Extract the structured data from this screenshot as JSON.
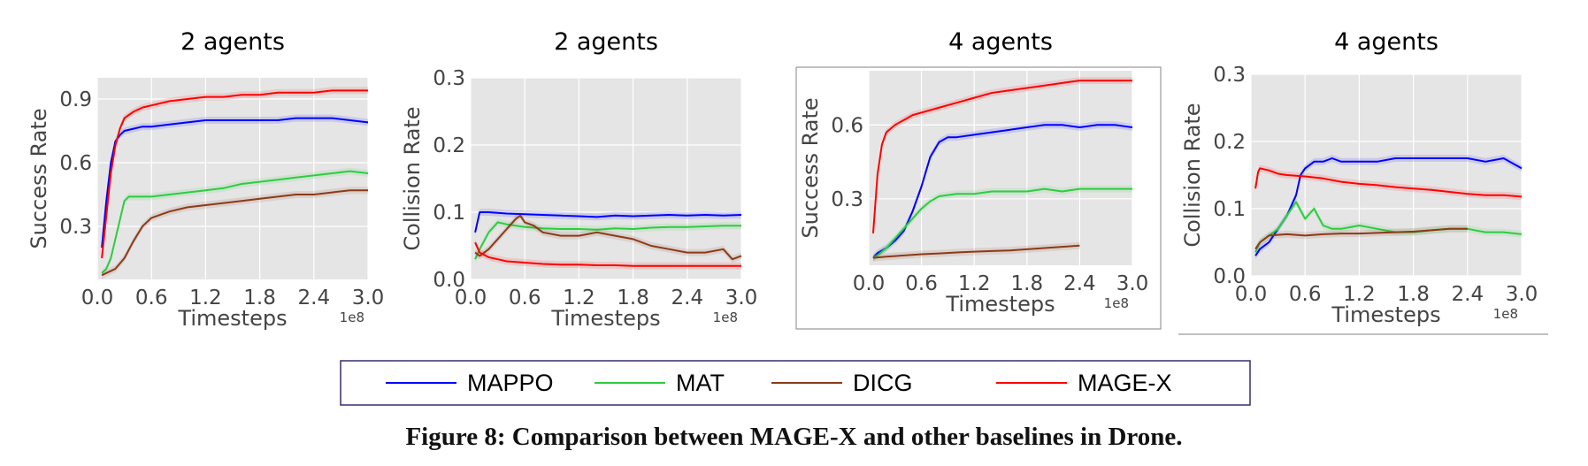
{
  "caption": "Figure 8: Comparison between MAGE-X and other baselines in Drone.",
  "legend": {
    "entries": [
      {
        "label": "MAPPO",
        "color": "#0000ff"
      },
      {
        "label": "MAT",
        "color": "#2ecc40"
      },
      {
        "label": "DICG",
        "color": "#8b3a1a"
      },
      {
        "label": "MAGE-X",
        "color": "#ff0000"
      }
    ]
  },
  "chart_data": [
    {
      "type": "line",
      "title": "2 agents",
      "xlabel": "Timesteps",
      "ylabel": "Success Rate",
      "x_multiplier": "1e8",
      "xlim": [
        0,
        3.0
      ],
      "ylim": [
        0.05,
        1.0
      ],
      "xticks": [
        "0.0",
        "0.6",
        "1.2",
        "1.8",
        "2.4",
        "3.0"
      ],
      "yticks": [
        {
          "v": 0.3,
          "label": "0.3"
        },
        {
          "v": 0.6,
          "label": "0.6"
        },
        {
          "v": 0.9,
          "label": "0.9"
        }
      ],
      "grid": true,
      "series": [
        {
          "name": "MAPPO",
          "color": "#0000ff",
          "x": [
            0.05,
            0.1,
            0.15,
            0.2,
            0.25,
            0.3,
            0.4,
            0.5,
            0.6,
            0.8,
            1.0,
            1.2,
            1.4,
            1.6,
            1.8,
            2.0,
            2.2,
            2.4,
            2.6,
            2.8,
            3.0
          ],
          "y": [
            0.2,
            0.42,
            0.6,
            0.7,
            0.73,
            0.75,
            0.76,
            0.77,
            0.77,
            0.78,
            0.79,
            0.8,
            0.8,
            0.8,
            0.8,
            0.8,
            0.81,
            0.81,
            0.81,
            0.8,
            0.79
          ]
        },
        {
          "name": "MAT",
          "color": "#2ecc40",
          "x": [
            0.05,
            0.1,
            0.15,
            0.2,
            0.25,
            0.3,
            0.35,
            0.4,
            0.6,
            0.8,
            1.0,
            1.2,
            1.4,
            1.6,
            1.8,
            2.0,
            2.2,
            2.4,
            2.6,
            2.8,
            3.0
          ],
          "y": [
            0.08,
            0.1,
            0.15,
            0.24,
            0.33,
            0.42,
            0.44,
            0.44,
            0.44,
            0.45,
            0.46,
            0.47,
            0.48,
            0.5,
            0.51,
            0.52,
            0.53,
            0.54,
            0.55,
            0.56,
            0.55
          ]
        },
        {
          "name": "DICG",
          "color": "#8b3a1a",
          "x": [
            0.05,
            0.1,
            0.2,
            0.3,
            0.4,
            0.5,
            0.6,
            0.8,
            1.0,
            1.2,
            1.4,
            1.6,
            1.8,
            2.0,
            2.2,
            2.4,
            2.6,
            2.8,
            3.0
          ],
          "y": [
            0.07,
            0.08,
            0.1,
            0.15,
            0.23,
            0.3,
            0.34,
            0.37,
            0.39,
            0.4,
            0.41,
            0.42,
            0.43,
            0.44,
            0.45,
            0.45,
            0.46,
            0.47,
            0.47
          ]
        },
        {
          "name": "MAGE-X",
          "color": "#ff0000",
          "x": [
            0.05,
            0.1,
            0.15,
            0.2,
            0.25,
            0.3,
            0.4,
            0.5,
            0.6,
            0.8,
            1.0,
            1.2,
            1.4,
            1.6,
            1.8,
            2.0,
            2.2,
            2.4,
            2.6,
            2.8,
            3.0
          ],
          "y": [
            0.15,
            0.35,
            0.55,
            0.68,
            0.76,
            0.81,
            0.84,
            0.86,
            0.87,
            0.89,
            0.9,
            0.91,
            0.91,
            0.92,
            0.92,
            0.93,
            0.93,
            0.93,
            0.94,
            0.94,
            0.94
          ]
        }
      ]
    },
    {
      "type": "line",
      "title": "2 agents",
      "xlabel": "Timesteps",
      "ylabel": "Collision Rate",
      "x_multiplier": "1e8",
      "xlim": [
        0,
        3.0
      ],
      "ylim": [
        0.0,
        0.3
      ],
      "xticks": [
        "0.0",
        "0.6",
        "1.2",
        "1.8",
        "2.4",
        "3.0"
      ],
      "yticks": [
        {
          "v": 0.0,
          "label": "0.0"
        },
        {
          "v": 0.1,
          "label": "0.1"
        },
        {
          "v": 0.2,
          "label": "0.2"
        },
        {
          "v": 0.3,
          "label": "0.3"
        }
      ],
      "grid": true,
      "series": [
        {
          "name": "MAPPO",
          "color": "#0000ff",
          "x": [
            0.05,
            0.1,
            0.2,
            0.4,
            0.6,
            0.8,
            1.0,
            1.2,
            1.4,
            1.6,
            1.8,
            2.0,
            2.2,
            2.4,
            2.6,
            2.8,
            3.0
          ],
          "y": [
            0.07,
            0.1,
            0.1,
            0.098,
            0.097,
            0.096,
            0.095,
            0.094,
            0.093,
            0.095,
            0.094,
            0.095,
            0.096,
            0.095,
            0.096,
            0.095,
            0.096
          ]
        },
        {
          "name": "MAT",
          "color": "#2ecc40",
          "x": [
            0.05,
            0.1,
            0.2,
            0.3,
            0.4,
            0.6,
            0.8,
            1.0,
            1.2,
            1.4,
            1.6,
            1.8,
            2.0,
            2.2,
            2.4,
            2.6,
            2.8,
            3.0
          ],
          "y": [
            0.03,
            0.045,
            0.07,
            0.085,
            0.082,
            0.078,
            0.076,
            0.075,
            0.075,
            0.074,
            0.076,
            0.075,
            0.077,
            0.078,
            0.078,
            0.079,
            0.08,
            0.08
          ]
        },
        {
          "name": "DICG",
          "color": "#8b3a1a",
          "x": [
            0.05,
            0.1,
            0.2,
            0.3,
            0.4,
            0.5,
            0.55,
            0.6,
            0.7,
            0.8,
            1.0,
            1.2,
            1.4,
            1.6,
            1.8,
            2.0,
            2.2,
            2.4,
            2.6,
            2.8,
            2.9,
            3.0
          ],
          "y": [
            0.04,
            0.035,
            0.045,
            0.06,
            0.075,
            0.09,
            0.095,
            0.085,
            0.08,
            0.07,
            0.065,
            0.065,
            0.07,
            0.065,
            0.06,
            0.05,
            0.045,
            0.04,
            0.04,
            0.045,
            0.03,
            0.035
          ]
        },
        {
          "name": "MAGE-X",
          "color": "#ff0000",
          "x": [
            0.05,
            0.1,
            0.2,
            0.3,
            0.4,
            0.6,
            0.8,
            1.0,
            1.2,
            1.4,
            1.6,
            1.8,
            2.0,
            2.2,
            2.4,
            2.6,
            2.8,
            3.0
          ],
          "y": [
            0.055,
            0.04,
            0.033,
            0.03,
            0.027,
            0.025,
            0.023,
            0.022,
            0.022,
            0.021,
            0.021,
            0.02,
            0.02,
            0.02,
            0.02,
            0.02,
            0.02,
            0.02
          ]
        }
      ]
    },
    {
      "type": "line",
      "title": "4 agents",
      "xlabel": "Timesteps",
      "ylabel": "Success Rate",
      "x_multiplier": "1e8",
      "xlim": [
        0,
        3.0
      ],
      "ylim": [
        0.03,
        0.82
      ],
      "xticks": [
        "0.0",
        "0.6",
        "1.2",
        "1.8",
        "2.4",
        "3.0"
      ],
      "yticks": [
        {
          "v": 0.3,
          "label": "0.3"
        },
        {
          "v": 0.6,
          "label": "0.6"
        }
      ],
      "grid": true,
      "series": [
        {
          "name": "MAPPO",
          "color": "#0000ff",
          "x": [
            0.05,
            0.1,
            0.2,
            0.3,
            0.4,
            0.5,
            0.6,
            0.7,
            0.8,
            0.9,
            1.0,
            1.2,
            1.4,
            1.6,
            1.8,
            2.0,
            2.2,
            2.4,
            2.6,
            2.8,
            3.0
          ],
          "y": [
            0.06,
            0.08,
            0.1,
            0.13,
            0.17,
            0.25,
            0.35,
            0.47,
            0.53,
            0.55,
            0.55,
            0.56,
            0.57,
            0.58,
            0.59,
            0.6,
            0.6,
            0.59,
            0.6,
            0.6,
            0.59
          ]
        },
        {
          "name": "MAT",
          "color": "#2ecc40",
          "x": [
            0.05,
            0.1,
            0.2,
            0.3,
            0.4,
            0.5,
            0.6,
            0.7,
            0.8,
            1.0,
            1.2,
            1.4,
            1.6,
            1.8,
            2.0,
            2.2,
            2.4,
            2.6,
            2.8,
            3.0
          ],
          "y": [
            0.06,
            0.07,
            0.1,
            0.14,
            0.18,
            0.22,
            0.26,
            0.29,
            0.31,
            0.32,
            0.32,
            0.33,
            0.33,
            0.33,
            0.34,
            0.33,
            0.34,
            0.34,
            0.34,
            0.34
          ]
        },
        {
          "name": "DICG",
          "color": "#8b3a1a",
          "x": [
            0.05,
            0.2,
            0.4,
            0.6,
            0.8,
            1.0,
            1.2,
            1.4,
            1.6,
            1.8,
            2.0,
            2.2,
            2.4
          ],
          "y": [
            0.06,
            0.065,
            0.07,
            0.075,
            0.078,
            0.082,
            0.085,
            0.088,
            0.09,
            0.095,
            0.1,
            0.105,
            0.11
          ]
        },
        {
          "name": "MAGE-X",
          "color": "#ff0000",
          "x": [
            0.05,
            0.1,
            0.15,
            0.2,
            0.3,
            0.4,
            0.5,
            0.6,
            0.8,
            1.0,
            1.2,
            1.4,
            1.6,
            1.8,
            2.0,
            2.2,
            2.4,
            2.6,
            2.8,
            3.0
          ],
          "y": [
            0.16,
            0.4,
            0.52,
            0.57,
            0.6,
            0.62,
            0.64,
            0.65,
            0.67,
            0.69,
            0.71,
            0.73,
            0.74,
            0.75,
            0.76,
            0.77,
            0.78,
            0.78,
            0.78,
            0.78
          ]
        }
      ]
    },
    {
      "type": "line",
      "title": "4 agents",
      "xlabel": "Timesteps",
      "ylabel": "Collision Rate",
      "x_multiplier": "1e8",
      "xlim": [
        0,
        3.0
      ],
      "ylim": [
        0.0,
        0.3
      ],
      "xticks": [
        "0.0",
        "0.6",
        "1.2",
        "1.8",
        "2.4",
        "3.0"
      ],
      "yticks": [
        {
          "v": 0.0,
          "label": "0.0"
        },
        {
          "v": 0.1,
          "label": "0.1"
        },
        {
          "v": 0.2,
          "label": "0.2"
        },
        {
          "v": 0.3,
          "label": "0.3"
        }
      ],
      "grid": true,
      "series": [
        {
          "name": "MAPPO",
          "color": "#0000ff",
          "x": [
            0.05,
            0.1,
            0.2,
            0.3,
            0.4,
            0.5,
            0.55,
            0.6,
            0.7,
            0.8,
            0.9,
            1.0,
            1.2,
            1.4,
            1.6,
            1.8,
            2.0,
            2.2,
            2.4,
            2.6,
            2.8,
            3.0
          ],
          "y": [
            0.03,
            0.04,
            0.05,
            0.07,
            0.09,
            0.12,
            0.15,
            0.16,
            0.17,
            0.17,
            0.175,
            0.17,
            0.17,
            0.17,
            0.175,
            0.175,
            0.175,
            0.175,
            0.175,
            0.17,
            0.175,
            0.16
          ]
        },
        {
          "name": "MAT",
          "color": "#2ecc40",
          "x": [
            0.05,
            0.1,
            0.2,
            0.3,
            0.4,
            0.5,
            0.6,
            0.7,
            0.8,
            0.9,
            1.0,
            1.2,
            1.4,
            1.6,
            1.8,
            2.0,
            2.2,
            2.4,
            2.6,
            2.8,
            3.0
          ],
          "y": [
            0.035,
            0.05,
            0.06,
            0.07,
            0.09,
            0.11,
            0.085,
            0.1,
            0.075,
            0.07,
            0.07,
            0.075,
            0.07,
            0.065,
            0.065,
            0.068,
            0.07,
            0.07,
            0.065,
            0.065,
            0.062
          ]
        },
        {
          "name": "DICG",
          "color": "#8b3a1a",
          "x": [
            0.05,
            0.1,
            0.2,
            0.4,
            0.6,
            0.8,
            1.0,
            1.2,
            1.4,
            1.6,
            1.8,
            2.0,
            2.2,
            2.4
          ],
          "y": [
            0.04,
            0.05,
            0.06,
            0.062,
            0.06,
            0.062,
            0.063,
            0.063,
            0.064,
            0.065,
            0.066,
            0.068,
            0.07,
            0.07
          ]
        },
        {
          "name": "MAGE-X",
          "color": "#ff0000",
          "x": [
            0.05,
            0.08,
            0.1,
            0.2,
            0.3,
            0.4,
            0.6,
            0.8,
            1.0,
            1.2,
            1.4,
            1.6,
            1.8,
            2.0,
            2.2,
            2.4,
            2.6,
            2.8,
            3.0
          ],
          "y": [
            0.13,
            0.155,
            0.16,
            0.157,
            0.152,
            0.15,
            0.148,
            0.145,
            0.14,
            0.137,
            0.135,
            0.132,
            0.13,
            0.128,
            0.125,
            0.122,
            0.12,
            0.12,
            0.118
          ]
        }
      ]
    }
  ]
}
